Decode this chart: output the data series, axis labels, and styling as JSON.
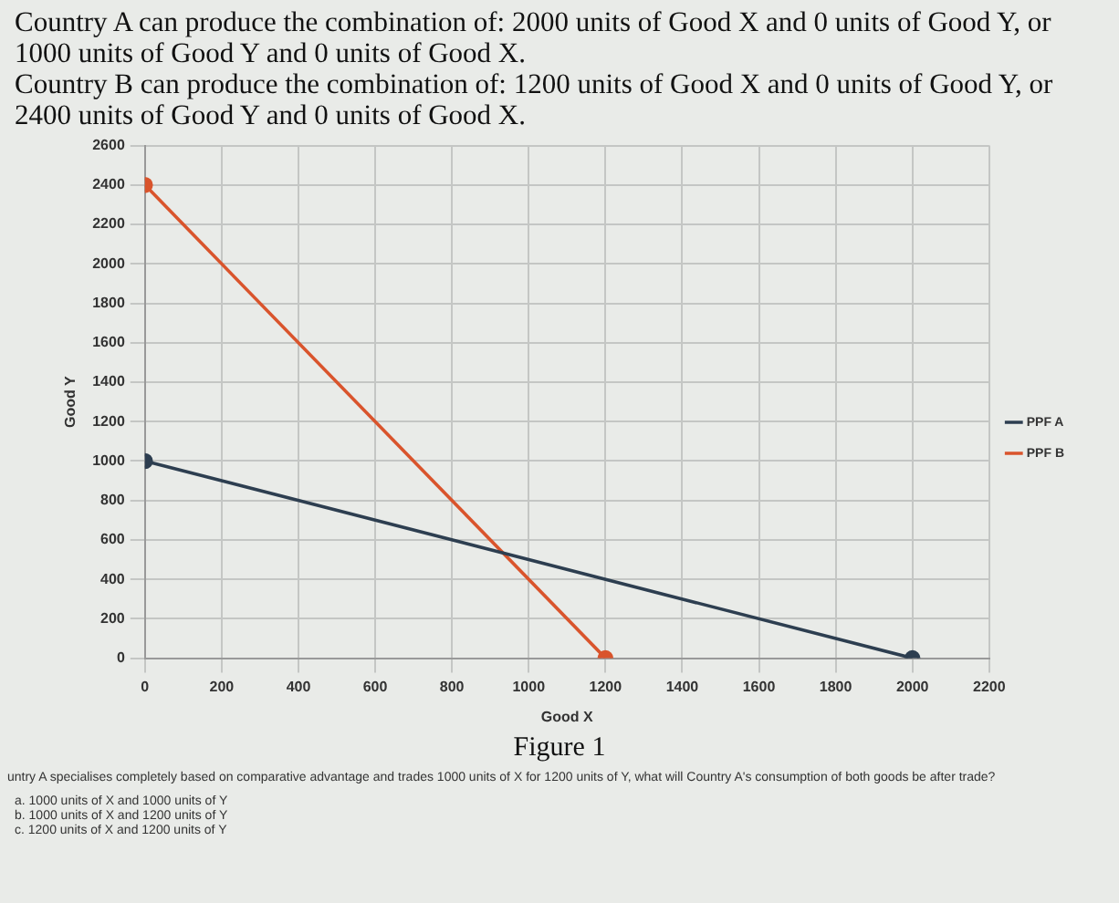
{
  "chart_data": {
    "type": "line",
    "title": "Country A can produce the combination of: 2000 units of Good X and 0 units of Good Y, or 1000 units of Good Y and 0 units of Good X.",
    "subtitle": "Country B can produce the combination of: 1200 units of Good X and 0 units of Good Y, or 2400 units of Good Y and 0 units of Good X.",
    "xlabel": "Good X",
    "ylabel": "Good Y",
    "series": [
      {
        "name": "PPF A",
        "color": "#2d3e50",
        "x": [
          0,
          2000
        ],
        "values": [
          1000,
          0
        ]
      },
      {
        "name": "PPF B",
        "color": "#d9542c",
        "x": [
          0,
          1200
        ],
        "values": [
          2400,
          0
        ]
      }
    ],
    "xlim": [
      0,
      2200
    ],
    "xticks": [
      0,
      200,
      400,
      600,
      800,
      1000,
      1200,
      1400,
      1600,
      1800,
      2000,
      2200
    ],
    "ylim": [
      0,
      2600
    ],
    "yticks": [
      0,
      200,
      400,
      600,
      800,
      1000,
      1200,
      1400,
      1600,
      1800,
      2000,
      2200,
      2400,
      2600
    ],
    "grid": true,
    "legend": "right",
    "marker": "circle",
    "annotations": [
      "Figure 1",
      "untry A specialises completely based on comparative advantage and trades 1000 units of X for 1200 units of Y, what will Country A's consumption of both goods be after trade?",
      "a. 1000 units of X and 1000 units of Y",
      "b. 1000 units of X and 1200 units of Y",
      "c. 1200 units of X and 1200 units of Y"
    ]
  }
}
